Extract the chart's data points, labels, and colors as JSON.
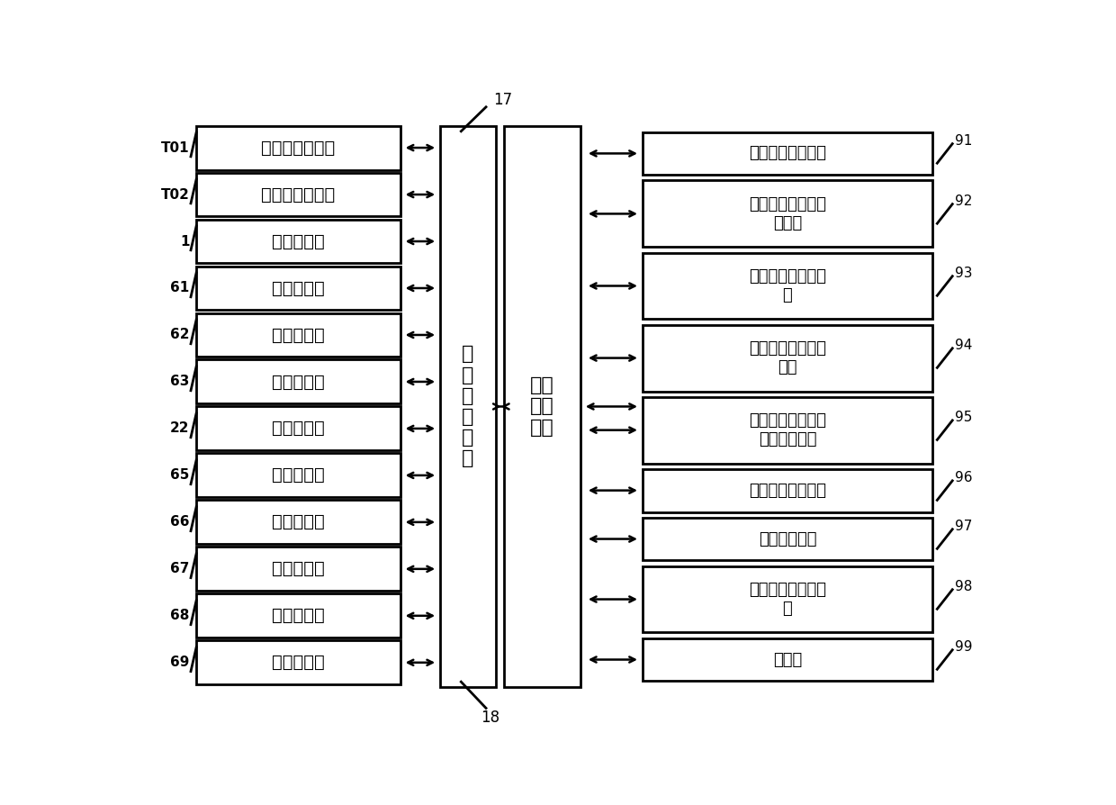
{
  "fig_width": 12.4,
  "fig_height": 8.94,
  "bg_color": "#ffffff",
  "left_boxes": [
    {
      "label": "第一油温传感器",
      "tag": "T01"
    },
    {
      "label": "第二油温传感器",
      "tag": "T02"
    },
    {
      "label": "红外加热器",
      "tag": "1"
    },
    {
      "label": "第一加热器",
      "tag": "61"
    },
    {
      "label": "第二加热器",
      "tag": "62"
    },
    {
      "label": "第三加热器",
      "tag": "63"
    },
    {
      "label": "第四加热器",
      "tag": "22"
    },
    {
      "label": "第五加热器",
      "tag": "65"
    },
    {
      "label": "第六加热器",
      "tag": "66"
    },
    {
      "label": "第七加热器",
      "tag": "67"
    },
    {
      "label": "第八加热器",
      "tag": "68"
    },
    {
      "label": "第九加热器",
      "tag": "69"
    }
  ],
  "center_left_label": "温\n度\n获\n取\n模\n块",
  "center_right_label": "温控\n处理\n模块",
  "center_tag_top": "17",
  "center_tag_bottom": "18",
  "right_boxes": [
    {
      "label": "柴油级别设置模块",
      "tag": "91",
      "lines": 1
    },
    {
      "label": "油加热启动温度设\n置模块",
      "tag": "92",
      "lines": 2
    },
    {
      "label": "油温上限值设置模\n块",
      "tag": "93",
      "lines": 2
    },
    {
      "label": "油箱温度阈值设置\n模块",
      "tag": "94",
      "lines": 2
    },
    {
      "label": "输油泵输入端油温\n阈值控制模块",
      "tag": "95",
      "lines": 2
    },
    {
      "label": "柴油级别设置旋钮",
      "tag": "96",
      "lines": 1
    },
    {
      "label": "漏电保护模块",
      "tag": "97",
      "lines": 1
    },
    {
      "label": "加热器短路保护模\n块",
      "tag": "98",
      "lines": 2
    },
    {
      "label": "显示屏",
      "tag": "99",
      "lines": 1
    }
  ]
}
